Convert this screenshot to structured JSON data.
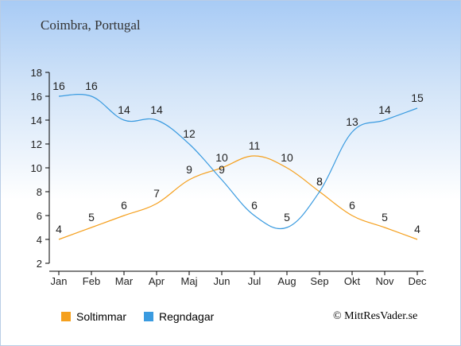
{
  "chart_data": {
    "type": "line",
    "title": "Coimbra, Portugal",
    "categories": [
      "Jan",
      "Feb",
      "Mar",
      "Apr",
      "Maj",
      "Jun",
      "Jul",
      "Aug",
      "Sep",
      "Okt",
      "Nov",
      "Dec"
    ],
    "series": [
      {
        "name": "Soltimmar",
        "values": [
          4,
          5,
          6,
          7,
          9,
          10,
          11,
          10,
          8,
          6,
          5,
          4
        ],
        "color": "#f5a01e"
      },
      {
        "name": "Regndagar",
        "values": [
          16,
          16,
          14,
          14,
          12,
          9,
          6,
          5,
          8,
          13,
          14,
          15
        ],
        "color": "#3a9be0"
      }
    ],
    "y_ticks": [
      "2",
      "4",
      "6",
      "8",
      "10",
      "12",
      "14",
      "16",
      "18"
    ],
    "ylim": [
      2,
      18
    ],
    "grid": false,
    "legend_position": "bottom-left"
  },
  "copyright": "© MittResVader.se"
}
